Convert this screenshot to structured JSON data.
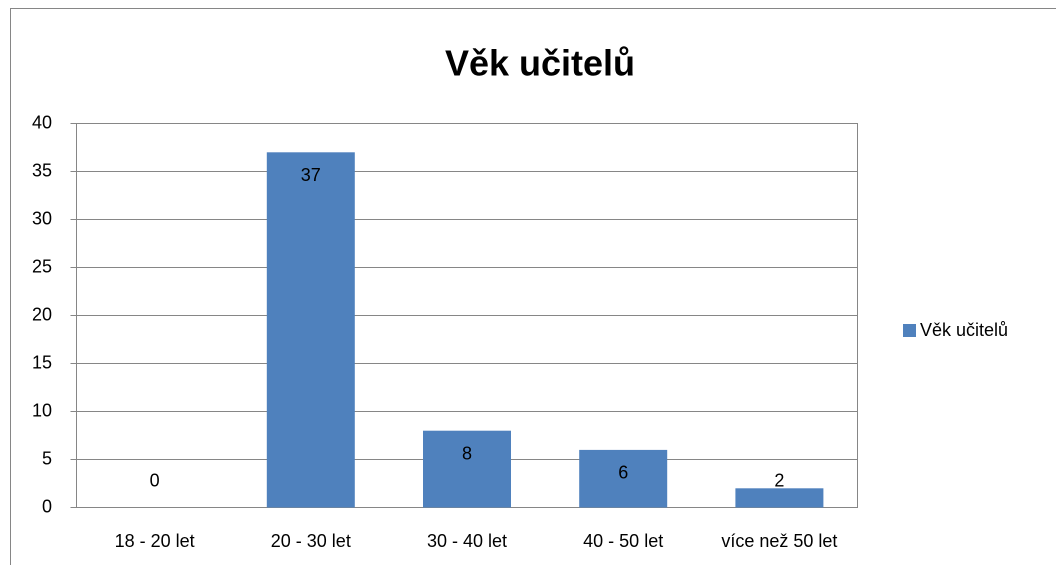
{
  "chart_data": {
    "type": "bar",
    "title": "Věk učitelů",
    "categories": [
      "18 - 20 let",
      "20 - 30 let",
      "30 - 40 let",
      "40 - 50 let",
      "více než 50 let"
    ],
    "series": [
      {
        "name": "Věk učitelů",
        "color": "#4f81bd",
        "values": [
          0,
          37,
          8,
          6,
          2
        ]
      }
    ],
    "ylim": [
      0,
      40
    ],
    "yticks": [
      0,
      5,
      10,
      15,
      20,
      25,
      30,
      35,
      40
    ],
    "grid": true,
    "legend": "right"
  }
}
